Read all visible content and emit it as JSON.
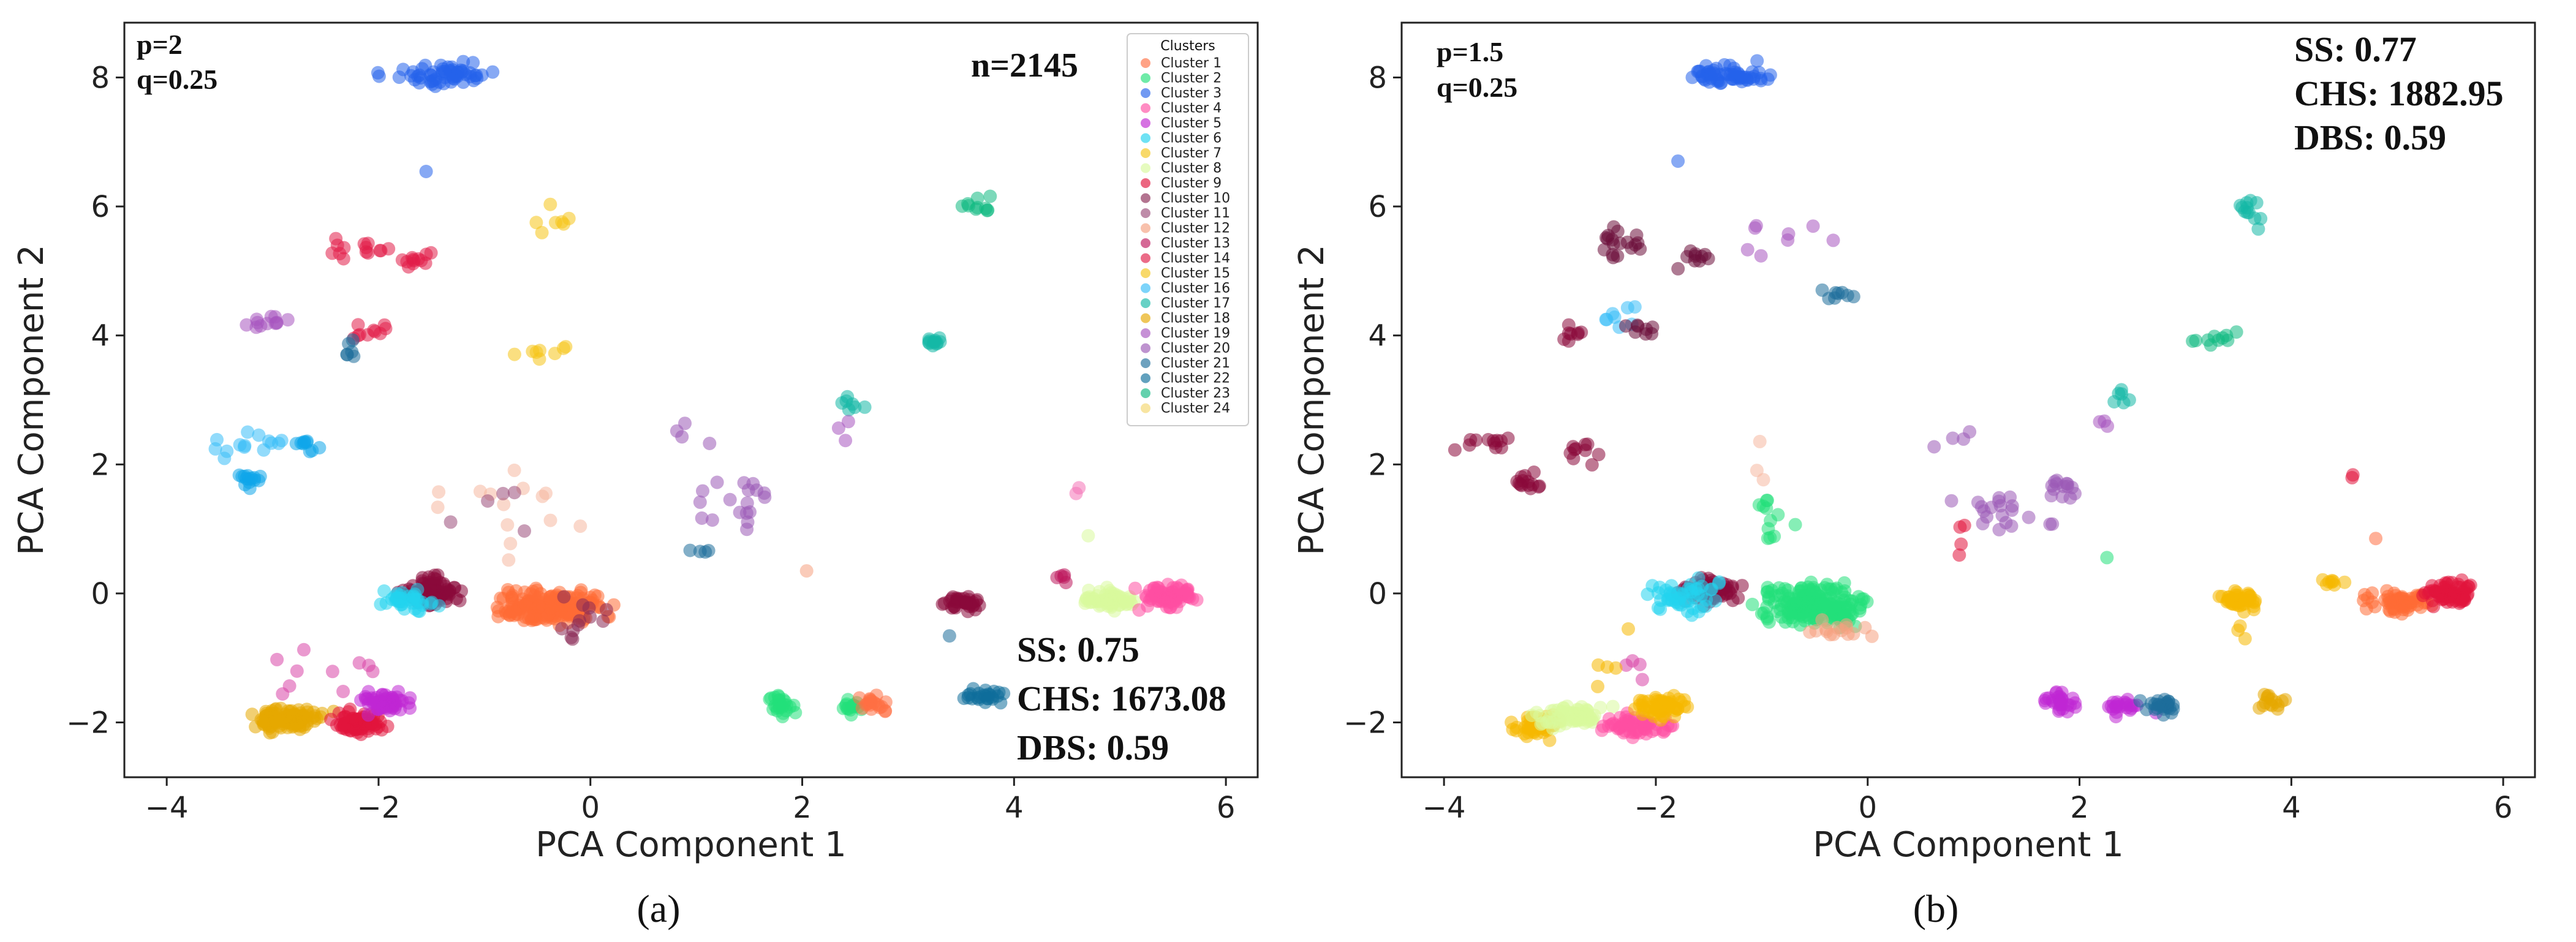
{
  "chart_data": [
    {
      "type": "scatter",
      "panel_label": "a",
      "caption": "(a)",
      "xlabel": "PCA Component 1",
      "ylabel": "PCA Component 2",
      "xlim": [
        -4.4,
        6.3
      ],
      "ylim": [
        -2.85,
        8.85
      ],
      "xticks": [
        -4,
        -2,
        0,
        2,
        4,
        6
      ],
      "yticks": [
        -2,
        0,
        2,
        4,
        6,
        8
      ],
      "params": [
        "p=2",
        "q=0.25"
      ],
      "n_label": "n=2145",
      "metrics": [
        "SS: 0.75",
        "CHS: 1673.08",
        "DBS: 0.59"
      ],
      "legend": {
        "title": "Clusters",
        "position": "top-right",
        "entries": [
          "Cluster 1",
          "Cluster 2",
          "Cluster 3",
          "Cluster 4",
          "Cluster 5",
          "Cluster 6",
          "Cluster 7",
          "Cluster 8",
          "Cluster 9",
          "Cluster 10",
          "Cluster 11",
          "Cluster 12",
          "Cluster 13",
          "Cluster 14",
          "Cluster 15",
          "Cluster 16",
          "Cluster 17",
          "Cluster 18",
          "Cluster 19",
          "Cluster 20",
          "Cluster 21",
          "Cluster 22",
          "Cluster 23",
          "Cluster 24"
        ]
      },
      "clusters": [
        {
          "x": -1.4,
          "y": 8.05,
          "sx": 0.28,
          "sy": 0.1,
          "n": 60,
          "c": "#2563eb"
        },
        {
          "x": -1.55,
          "y": 6.55,
          "sx": 0.01,
          "sy": 0.01,
          "n": 1,
          "c": "#2563eb"
        },
        {
          "x": -0.4,
          "y": 5.75,
          "sx": 0.3,
          "sy": 0.15,
          "n": 7,
          "c": "#f5c518"
        },
        {
          "x": -2.2,
          "y": 5.35,
          "sx": 0.18,
          "sy": 0.1,
          "n": 14,
          "c": "#e11d48"
        },
        {
          "x": -1.65,
          "y": 5.15,
          "sx": 0.12,
          "sy": 0.08,
          "n": 12,
          "c": "#e11d48"
        },
        {
          "x": -3.05,
          "y": 4.2,
          "sx": 0.15,
          "sy": 0.08,
          "n": 12,
          "c": "#a855c0"
        },
        {
          "x": -2.1,
          "y": 4.05,
          "sx": 0.12,
          "sy": 0.08,
          "n": 10,
          "c": "#e11d48"
        },
        {
          "x": -2.25,
          "y": 3.75,
          "sx": 0.08,
          "sy": 0.15,
          "n": 6,
          "c": "#1e6e9b"
        },
        {
          "x": -0.4,
          "y": 3.75,
          "sx": 0.2,
          "sy": 0.1,
          "n": 8,
          "c": "#f5c518"
        },
        {
          "x": 3.25,
          "y": 3.9,
          "sx": 0.05,
          "sy": 0.05,
          "n": 12,
          "c": "#14b8a6"
        },
        {
          "x": 3.7,
          "y": 6.0,
          "sx": 0.12,
          "sy": 0.12,
          "n": 10,
          "c": "#10b981"
        },
        {
          "x": 2.45,
          "y": 3.0,
          "sx": 0.06,
          "sy": 0.1,
          "n": 7,
          "c": "#14b8a6"
        },
        {
          "x": 2.4,
          "y": 2.55,
          "sx": 0.06,
          "sy": 0.1,
          "n": 3,
          "c": "#a855c0"
        },
        {
          "x": -3.2,
          "y": 2.3,
          "sx": 0.25,
          "sy": 0.15,
          "n": 14,
          "c": "#38bdf8"
        },
        {
          "x": -3.2,
          "y": 1.8,
          "sx": 0.08,
          "sy": 0.08,
          "n": 14,
          "c": "#0ea5e9"
        },
        {
          "x": -2.7,
          "y": 2.35,
          "sx": 0.1,
          "sy": 0.07,
          "n": 10,
          "c": "#0ea5e9"
        },
        {
          "x": -0.8,
          "y": 1.5,
          "sx": 0.4,
          "sy": 0.6,
          "n": 14,
          "c": "#f5b8a0"
        },
        {
          "x": -0.8,
          "y": 1.4,
          "sx": 0.3,
          "sy": 0.3,
          "n": 5,
          "c": "#9b4d7a"
        },
        {
          "x": 1.4,
          "y": 1.45,
          "sx": 0.3,
          "sy": 0.25,
          "n": 18,
          "c": "#9b59b6"
        },
        {
          "x": 0.9,
          "y": 2.5,
          "sx": 0.15,
          "sy": 0.2,
          "n": 4,
          "c": "#9b59b6"
        },
        {
          "x": 1.05,
          "y": 0.62,
          "sx": 0.08,
          "sy": 0.05,
          "n": 4,
          "c": "#1e6e9b"
        },
        {
          "x": 4.6,
          "y": 1.55,
          "sx": 0.1,
          "sy": 0.08,
          "n": 2,
          "c": "#f472b6"
        },
        {
          "x": 4.45,
          "y": 0.25,
          "sx": 0.05,
          "sy": 0.05,
          "n": 5,
          "c": "#be185d"
        },
        {
          "x": -1.5,
          "y": 0.05,
          "sx": 0.15,
          "sy": 0.15,
          "n": 80,
          "c": "#8b0a3b"
        },
        {
          "x": -1.75,
          "y": -0.1,
          "sx": 0.18,
          "sy": 0.1,
          "n": 40,
          "c": "#22d3ee"
        },
        {
          "x": -0.4,
          "y": -0.2,
          "sx": 0.3,
          "sy": 0.15,
          "n": 200,
          "c": "#ff6b35"
        },
        {
          "x": -0.1,
          "y": -0.4,
          "sx": 0.2,
          "sy": 0.2,
          "n": 12,
          "c": "#8b2a55"
        },
        {
          "x": -2.85,
          "y": -1.95,
          "sx": 0.2,
          "sy": 0.1,
          "n": 100,
          "c": "#e6a800"
        },
        {
          "x": -2.2,
          "y": -2.0,
          "sx": 0.15,
          "sy": 0.1,
          "n": 80,
          "c": "#e1143c"
        },
        {
          "x": -1.9,
          "y": -1.7,
          "sx": 0.15,
          "sy": 0.1,
          "n": 60,
          "c": "#c026d3"
        },
        {
          "x": -2.5,
          "y": -1.2,
          "sx": 0.35,
          "sy": 0.3,
          "n": 10,
          "c": "#d946a8"
        },
        {
          "x": 1.8,
          "y": -1.7,
          "sx": 0.08,
          "sy": 0.1,
          "n": 25,
          "c": "#22e07a"
        },
        {
          "x": 2.45,
          "y": -1.75,
          "sx": 0.06,
          "sy": 0.07,
          "n": 15,
          "c": "#22e07a"
        },
        {
          "x": 2.7,
          "y": -1.7,
          "sx": 0.08,
          "sy": 0.08,
          "n": 20,
          "c": "#ff7043"
        },
        {
          "x": 2.05,
          "y": 0.35,
          "sx": 0.01,
          "sy": 0.01,
          "n": 1,
          "c": "#f5a080"
        },
        {
          "x": 3.5,
          "y": -0.15,
          "sx": 0.1,
          "sy": 0.08,
          "n": 35,
          "c": "#8b0a3b"
        },
        {
          "x": 3.4,
          "y": -0.65,
          "sx": 0.01,
          "sy": 0.01,
          "n": 1,
          "c": "#1e6e9b"
        },
        {
          "x": 3.7,
          "y": -1.6,
          "sx": 0.12,
          "sy": 0.08,
          "n": 25,
          "c": "#0e6e9b"
        },
        {
          "x": 4.95,
          "y": -0.1,
          "sx": 0.15,
          "sy": 0.1,
          "n": 60,
          "c": "#d9f99d"
        },
        {
          "x": 5.45,
          "y": -0.05,
          "sx": 0.15,
          "sy": 0.1,
          "n": 80,
          "c": "#ff4fa3"
        },
        {
          "x": 4.7,
          "y": 0.9,
          "sx": 0.01,
          "sy": 0.01,
          "n": 1,
          "c": "#d9f99d"
        }
      ]
    },
    {
      "type": "scatter",
      "panel_label": "b",
      "caption": "(b)",
      "xlabel": "PCA Component 1",
      "ylabel": "PCA Component 2",
      "xlim": [
        -4.4,
        6.3
      ],
      "ylim": [
        -2.85,
        8.85
      ],
      "xticks": [
        -4,
        -2,
        0,
        2,
        4,
        6
      ],
      "yticks": [
        -2,
        0,
        2,
        4,
        6,
        8
      ],
      "params": [
        "p=1.5",
        "q=0.25"
      ],
      "metrics": [
        "SS: 0.77",
        "CHS: 1882.95",
        "DBS: 0.59"
      ],
      "clusters": [
        {
          "x": -1.25,
          "y": 8.05,
          "sx": 0.25,
          "sy": 0.1,
          "n": 60,
          "c": "#2563eb"
        },
        {
          "x": -1.8,
          "y": 6.7,
          "sx": 0.01,
          "sy": 0.01,
          "n": 1,
          "c": "#2563eb"
        },
        {
          "x": -0.6,
          "y": 5.5,
          "sx": 0.4,
          "sy": 0.2,
          "n": 8,
          "c": "#a855c0"
        },
        {
          "x": -2.3,
          "y": 5.45,
          "sx": 0.15,
          "sy": 0.15,
          "n": 18,
          "c": "#6b0f3a"
        },
        {
          "x": -1.6,
          "y": 5.2,
          "sx": 0.12,
          "sy": 0.1,
          "n": 10,
          "c": "#6b0f3a"
        },
        {
          "x": -2.35,
          "y": 4.3,
          "sx": 0.15,
          "sy": 0.15,
          "n": 8,
          "c": "#38bdf8"
        },
        {
          "x": -2.8,
          "y": 4.0,
          "sx": 0.06,
          "sy": 0.1,
          "n": 8,
          "c": "#8b0a3b"
        },
        {
          "x": -2.15,
          "y": 4.1,
          "sx": 0.1,
          "sy": 0.06,
          "n": 8,
          "c": "#6b0f3a"
        },
        {
          "x": -0.35,
          "y": 4.6,
          "sx": 0.12,
          "sy": 0.05,
          "n": 8,
          "c": "#1e6e9b"
        },
        {
          "x": 3.6,
          "y": 5.95,
          "sx": 0.08,
          "sy": 0.15,
          "n": 12,
          "c": "#14b8a6"
        },
        {
          "x": 3.25,
          "y": 3.95,
          "sx": 0.15,
          "sy": 0.05,
          "n": 10,
          "c": "#10b981"
        },
        {
          "x": 2.35,
          "y": 3.05,
          "sx": 0.08,
          "sy": 0.1,
          "n": 6,
          "c": "#14b8a6"
        },
        {
          "x": 2.25,
          "y": 2.65,
          "sx": 0.05,
          "sy": 0.05,
          "n": 3,
          "c": "#a855c0"
        },
        {
          "x": -3.6,
          "y": 2.3,
          "sx": 0.2,
          "sy": 0.08,
          "n": 12,
          "c": "#8b0a3b"
        },
        {
          "x": -3.2,
          "y": 1.7,
          "sx": 0.1,
          "sy": 0.1,
          "n": 14,
          "c": "#8b0a3b"
        },
        {
          "x": -2.7,
          "y": 2.2,
          "sx": 0.1,
          "sy": 0.15,
          "n": 10,
          "c": "#8b0a3b"
        },
        {
          "x": -1.05,
          "y": 2.0,
          "sx": 0.08,
          "sy": 0.3,
          "n": 3,
          "c": "#f5b8a0"
        },
        {
          "x": 0.8,
          "y": 2.4,
          "sx": 0.15,
          "sy": 0.15,
          "n": 4,
          "c": "#9b59b6"
        },
        {
          "x": 1.3,
          "y": 1.3,
          "sx": 0.3,
          "sy": 0.15,
          "n": 20,
          "c": "#9b59b6"
        },
        {
          "x": 1.85,
          "y": 1.6,
          "sx": 0.1,
          "sy": 0.08,
          "n": 14,
          "c": "#9b59b6"
        },
        {
          "x": 0.9,
          "y": 0.8,
          "sx": 0.05,
          "sy": 0.2,
          "n": 4,
          "c": "#e1143c"
        },
        {
          "x": 4.5,
          "y": 1.85,
          "sx": 0.12,
          "sy": 0.08,
          "n": 2,
          "c": "#e1143c"
        },
        {
          "x": 4.8,
          "y": 0.85,
          "sx": 0.01,
          "sy": 0.01,
          "n": 1,
          "c": "#ff7043"
        },
        {
          "x": 2.25,
          "y": 0.55,
          "sx": 0.01,
          "sy": 0.01,
          "n": 1,
          "c": "#22e07a"
        },
        {
          "x": -1.45,
          "y": 0.05,
          "sx": 0.18,
          "sy": 0.12,
          "n": 70,
          "c": "#8b0a3b"
        },
        {
          "x": -1.7,
          "y": -0.05,
          "sx": 0.2,
          "sy": 0.15,
          "n": 50,
          "c": "#22d3ee"
        },
        {
          "x": -0.5,
          "y": -0.2,
          "sx": 0.28,
          "sy": 0.18,
          "n": 200,
          "c": "#22e07a"
        },
        {
          "x": -0.9,
          "y": 1.2,
          "sx": 0.15,
          "sy": 0.25,
          "n": 12,
          "c": "#22e07a"
        },
        {
          "x": -0.3,
          "y": -0.55,
          "sx": 0.2,
          "sy": 0.12,
          "n": 15,
          "c": "#f5a080"
        },
        {
          "x": 3.5,
          "y": -0.1,
          "sx": 0.12,
          "sy": 0.1,
          "n": 40,
          "c": "#f5b800"
        },
        {
          "x": 3.55,
          "y": -0.55,
          "sx": 0.05,
          "sy": 0.1,
          "n": 3,
          "c": "#f5b800"
        },
        {
          "x": 4.35,
          "y": 0.2,
          "sx": 0.12,
          "sy": 0.05,
          "n": 8,
          "c": "#f5b800"
        },
        {
          "x": 5.0,
          "y": -0.15,
          "sx": 0.18,
          "sy": 0.1,
          "n": 60,
          "c": "#ff6b35"
        },
        {
          "x": 5.5,
          "y": 0.0,
          "sx": 0.15,
          "sy": 0.12,
          "n": 70,
          "c": "#e1143c"
        },
        {
          "x": 3.8,
          "y": -1.7,
          "sx": 0.12,
          "sy": 0.1,
          "n": 15,
          "c": "#e6a800"
        },
        {
          "x": 1.8,
          "y": -1.65,
          "sx": 0.1,
          "sy": 0.1,
          "n": 28,
          "c": "#c026d3"
        },
        {
          "x": 2.45,
          "y": -1.75,
          "sx": 0.12,
          "sy": 0.08,
          "n": 22,
          "c": "#c026d3"
        },
        {
          "x": 2.75,
          "y": -1.75,
          "sx": 0.1,
          "sy": 0.08,
          "n": 25,
          "c": "#1e6e9b"
        },
        {
          "x": -3.1,
          "y": -2.05,
          "sx": 0.15,
          "sy": 0.1,
          "n": 50,
          "c": "#f5b800"
        },
        {
          "x": -2.8,
          "y": -1.9,
          "sx": 0.2,
          "sy": 0.1,
          "n": 60,
          "c": "#d9f99d"
        },
        {
          "x": -2.2,
          "y": -2.05,
          "sx": 0.18,
          "sy": 0.1,
          "n": 60,
          "c": "#ff4fa3"
        },
        {
          "x": -1.95,
          "y": -1.75,
          "sx": 0.15,
          "sy": 0.12,
          "n": 60,
          "c": "#f5b800"
        },
        {
          "x": -2.15,
          "y": -1.2,
          "sx": 0.1,
          "sy": 0.15,
          "n": 4,
          "c": "#d946a8"
        },
        {
          "x": -2.4,
          "y": -0.9,
          "sx": 0.2,
          "sy": 0.3,
          "n": 5,
          "c": "#f5b800"
        }
      ]
    }
  ]
}
